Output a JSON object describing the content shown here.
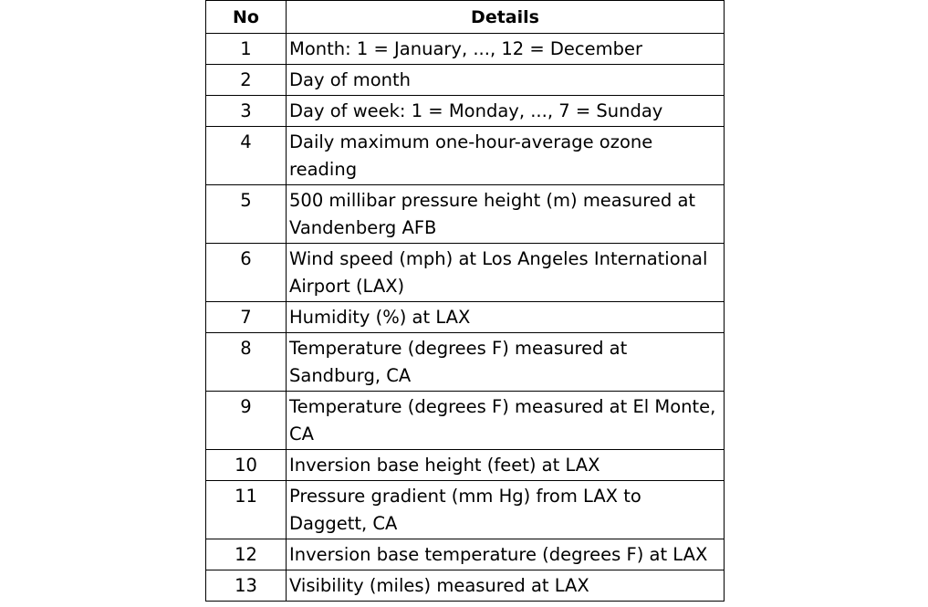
{
  "table": {
    "headers": {
      "no": "No",
      "details": "Details"
    },
    "rows": [
      {
        "no": "1",
        "lines": [
          "Month: 1 = January, ..., 12 = December"
        ]
      },
      {
        "no": "2",
        "lines": [
          "Day of month"
        ]
      },
      {
        "no": "3",
        "lines": [
          "Day of week: 1 = Monday, ..., 7 = Sunday"
        ]
      },
      {
        "no": "4",
        "lines": [
          "Daily maximum one-hour-average ozone",
          "reading"
        ]
      },
      {
        "no": "5",
        "lines": [
          "500 millibar pressure height (m) measured at",
          "Vandenberg AFB"
        ]
      },
      {
        "no": "6",
        "lines": [
          "Wind speed (mph) at Los Angeles International",
          "Airport (LAX)"
        ]
      },
      {
        "no": "7",
        "lines": [
          "Humidity (%) at LAX"
        ]
      },
      {
        "no": "8",
        "lines": [
          "Temperature (degrees F) measured at",
          "Sandburg, CA"
        ]
      },
      {
        "no": "9",
        "lines": [
          "Temperature (degrees F) measured at El Monte,",
          "CA"
        ]
      },
      {
        "no": "10",
        "lines": [
          "Inversion base height (feet) at LAX"
        ]
      },
      {
        "no": "11",
        "lines": [
          "Pressure gradient (mm Hg) from LAX to",
          "Daggett, CA"
        ]
      },
      {
        "no": "12",
        "lines": [
          "Inversion base temperature (degrees F) at LAX"
        ]
      },
      {
        "no": "13",
        "lines": [
          "Visibility (miles) measured at LAX"
        ]
      }
    ]
  }
}
